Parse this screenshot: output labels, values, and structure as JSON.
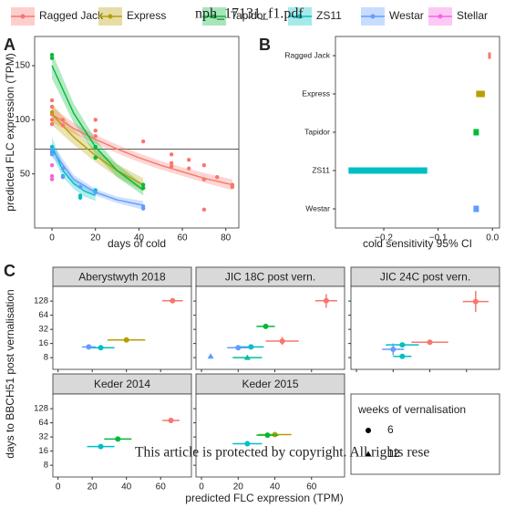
{
  "header": "nph_17131_f1.pdf",
  "watermark": "This article is protected by copyright. All rights rese",
  "chart_data": [
    {
      "type": "scatter",
      "label": "A",
      "xlabel": "days of cold",
      "ylabel": "predicted FLC expression (TPM)",
      "xlim": [
        -8,
        86
      ],
      "ylim": [
        0,
        177
      ],
      "xticks": [
        0,
        20,
        40,
        60,
        80
      ],
      "yticks": [
        50,
        100,
        150
      ],
      "hline": 73,
      "series": [
        {
          "name": "Ragged Jack",
          "color": "#f8766d",
          "x": [
            0,
            0,
            0,
            0,
            0,
            5,
            5,
            20,
            20,
            20,
            42,
            55,
            55,
            55,
            63,
            63,
            70,
            70,
            70,
            76,
            83,
            83
          ],
          "values": [
            118,
            112,
            105,
            100,
            96,
            100,
            95,
            100,
            90,
            85,
            80,
            68,
            60,
            57,
            55,
            63,
            58,
            45,
            17,
            47,
            40,
            38
          ],
          "fit": {
            "x": [
              0,
              10,
              20,
              30,
              40,
              50,
              60,
              70,
              83
            ],
            "values": [
              105,
              92,
              82,
              73,
              65,
              58,
              52,
              46,
              40
            ],
            "lower": [
              98,
              87,
              78,
              69,
              61,
              54,
              48,
              42,
              35
            ],
            "upper": [
              112,
              97,
              86,
              77,
              69,
              62,
              56,
              51,
              45
            ]
          }
        },
        {
          "name": "Express",
          "color": "#b79f00",
          "x": [
            0,
            20,
            42
          ],
          "values": [
            107,
            65,
            37
          ],
          "fit": {
            "x": [
              0,
              10,
              20,
              30,
              42
            ],
            "values": [
              105,
              84,
              67,
              53,
              40
            ],
            "lower": [
              95,
              77,
              61,
              47,
              34
            ],
            "upper": [
              115,
              91,
              73,
              59,
              46
            ]
          }
        },
        {
          "name": "Tapidor",
          "color": "#00ba38",
          "x": [
            0,
            0,
            20,
            20,
            42,
            42
          ],
          "values": [
            157,
            160,
            65,
            75,
            37,
            40
          ],
          "fit": {
            "x": [
              0,
              10,
              20,
              30,
              42
            ],
            "values": [
              150,
              106,
              75,
              53,
              35
            ],
            "lower": [
              138,
              97,
              68,
              47,
              30
            ],
            "upper": [
              162,
              115,
              82,
              59,
              40
            ]
          }
        },
        {
          "name": "ZS11",
          "color": "#00bfc4",
          "x": [
            0,
            0,
            5,
            5,
            13,
            13,
            20,
            20
          ],
          "values": [
            75,
            70,
            55,
            48,
            30,
            28,
            35,
            33
          ],
          "fit": {
            "x": [
              0,
              5,
              10,
              15,
              20
            ],
            "values": [
              76,
              53,
              41,
              34,
              30
            ],
            "lower": [
              68,
              47,
              36,
              29,
              25
            ],
            "upper": [
              84,
              59,
              46,
              39,
              35
            ]
          }
        },
        {
          "name": "Westar",
          "color": "#619cff",
          "x": [
            0,
            0,
            5,
            5,
            13,
            20,
            42,
            42
          ],
          "values": [
            72,
            68,
            55,
            47,
            38,
            33,
            20,
            18
          ],
          "fit": {
            "x": [
              0,
              10,
              20,
              30,
              42
            ],
            "values": [
              72,
              45,
              33,
              26,
              21
            ],
            "lower": [
              66,
              41,
              30,
              23,
              17
            ],
            "upper": [
              78,
              49,
              36,
              29,
              25
            ]
          }
        },
        {
          "name": "Stellar",
          "color": "#f564e3",
          "x": [
            0,
            0,
            0
          ],
          "values": [
            58,
            48,
            45
          ]
        }
      ]
    },
    {
      "type": "bar",
      "label": "B",
      "xlabel": "cold sensitivity 95% CI",
      "categories": [
        "Ragged Jack",
        "Express",
        "Tapidor",
        "ZS11",
        "Westar"
      ],
      "low": [
        -0.008,
        -0.03,
        -0.035,
        -0.265,
        -0.035
      ],
      "high": [
        -0.003,
        -0.014,
        -0.025,
        -0.12,
        -0.025
      ],
      "colors": [
        "#f8766d",
        "#b79f00",
        "#00ba38",
        "#00bfc4",
        "#619cff"
      ],
      "xlim": [
        -0.289,
        0.013
      ],
      "xticks": [
        {
          "value": -0.2,
          "label": "−0.2"
        },
        {
          "value": -0.1,
          "label": "−0.1"
        },
        {
          "value": 0,
          "label": "0.0"
        }
      ]
    },
    {
      "type": "scatter",
      "label": "C",
      "xlabel": "predicted FLC expression (TPM)",
      "ylabel": "days to BBCH51 post vernalisation",
      "log_y": true,
      "xlim": [
        -3,
        78
      ],
      "ylim": [
        4.5,
        263
      ],
      "xticks": [
        0,
        20,
        40,
        60
      ],
      "yticks": [
        8,
        16,
        32,
        64,
        128
      ],
      "legend": {
        "title": "weeks of vernalisation",
        "entries": [
          {
            "value": 6,
            "marker": "circle"
          },
          {
            "value": 12,
            "marker": "triangle"
          }
        ]
      },
      "facets": [
        {
          "title": "Aberystwyth 2018",
          "points": [
            {
              "x": 67,
              "y": 130,
              "xerr": 6,
              "color": "#f8766d",
              "marker": "circle"
            },
            {
              "x": 40,
              "y": 19,
              "xerr": 11,
              "color": "#b79f00",
              "marker": "circle"
            },
            {
              "x": 25,
              "y": 13,
              "xerr": 8,
              "color": "#00bfc4",
              "marker": "circle"
            },
            {
              "x": 18,
              "y": 13.5,
              "xerr": 4,
              "color": "#619cff",
              "marker": "circle"
            }
          ]
        },
        {
          "title": "JIC 18C post vern.",
          "points": [
            {
              "x": 68,
              "y": 130,
              "xerr": 6,
              "ylo": 92,
              "yhi": 180,
              "color": "#f8766d",
              "marker": "circle"
            },
            {
              "x": 44,
              "y": 18,
              "xerr": 9,
              "ylo": 15,
              "yhi": 22,
              "color": "#f8766d",
              "marker": "circle"
            },
            {
              "x": 35,
              "y": 37,
              "xerr": 5,
              "color": "#00ba38",
              "marker": "circle"
            },
            {
              "x": 27,
              "y": 13.5,
              "xerr": 7,
              "color": "#00bfc4",
              "marker": "circle"
            },
            {
              "x": 20,
              "y": 13,
              "xerr": 6,
              "color": "#619cff",
              "marker": "circle"
            },
            {
              "x": 25,
              "y": 8,
              "xerr": 8,
              "color": "#00bfa0",
              "marker": "triangle"
            },
            {
              "x": 5,
              "y": 8.5,
              "xerr": 1,
              "color": "#619cff",
              "marker": "triangle"
            }
          ]
        },
        {
          "title": "JIC 24C post vern.",
          "points": [
            {
              "x": 65,
              "y": 125,
              "xerr": 7,
              "ylo": 75,
              "yhi": 210,
              "color": "#f8766d",
              "marker": "circle"
            },
            {
              "x": 40,
              "y": 17,
              "xerr": 10,
              "color": "#f8766d",
              "marker": "circle"
            },
            {
              "x": 25,
              "y": 15,
              "xerr": 9,
              "color": "#00bfc4",
              "marker": "circle"
            },
            {
              "x": 20,
              "y": 12,
              "xerr": 6,
              "ylo": 9,
              "yhi": 16,
              "color": "#619cff",
              "marker": "circle"
            },
            {
              "x": 25,
              "y": 8.5,
              "xerr": 5,
              "color": "#00bfc4",
              "marker": "circle"
            }
          ]
        },
        {
          "title": "Keder 2014",
          "points": [
            {
              "x": 66,
              "y": 72,
              "xerr": 5,
              "color": "#f8766d",
              "marker": "circle"
            },
            {
              "x": 35,
              "y": 29,
              "xerr": 8,
              "color": "#00ba38",
              "marker": "circle"
            },
            {
              "x": 25,
              "y": 20,
              "xerr": 8,
              "color": "#00bfc4",
              "marker": "circle"
            }
          ]
        },
        {
          "title": "Keder 2015",
          "points": [
            {
              "x": 40,
              "y": 36,
              "xerr": 9,
              "color": "#b79f00",
              "marker": "circle"
            },
            {
              "x": 36,
              "y": 35,
              "xerr": 6,
              "color": "#00ba38",
              "marker": "circle"
            },
            {
              "x": 25,
              "y": 23,
              "xerr": 8,
              "color": "#00bfc4",
              "marker": "circle"
            }
          ]
        }
      ]
    }
  ]
}
